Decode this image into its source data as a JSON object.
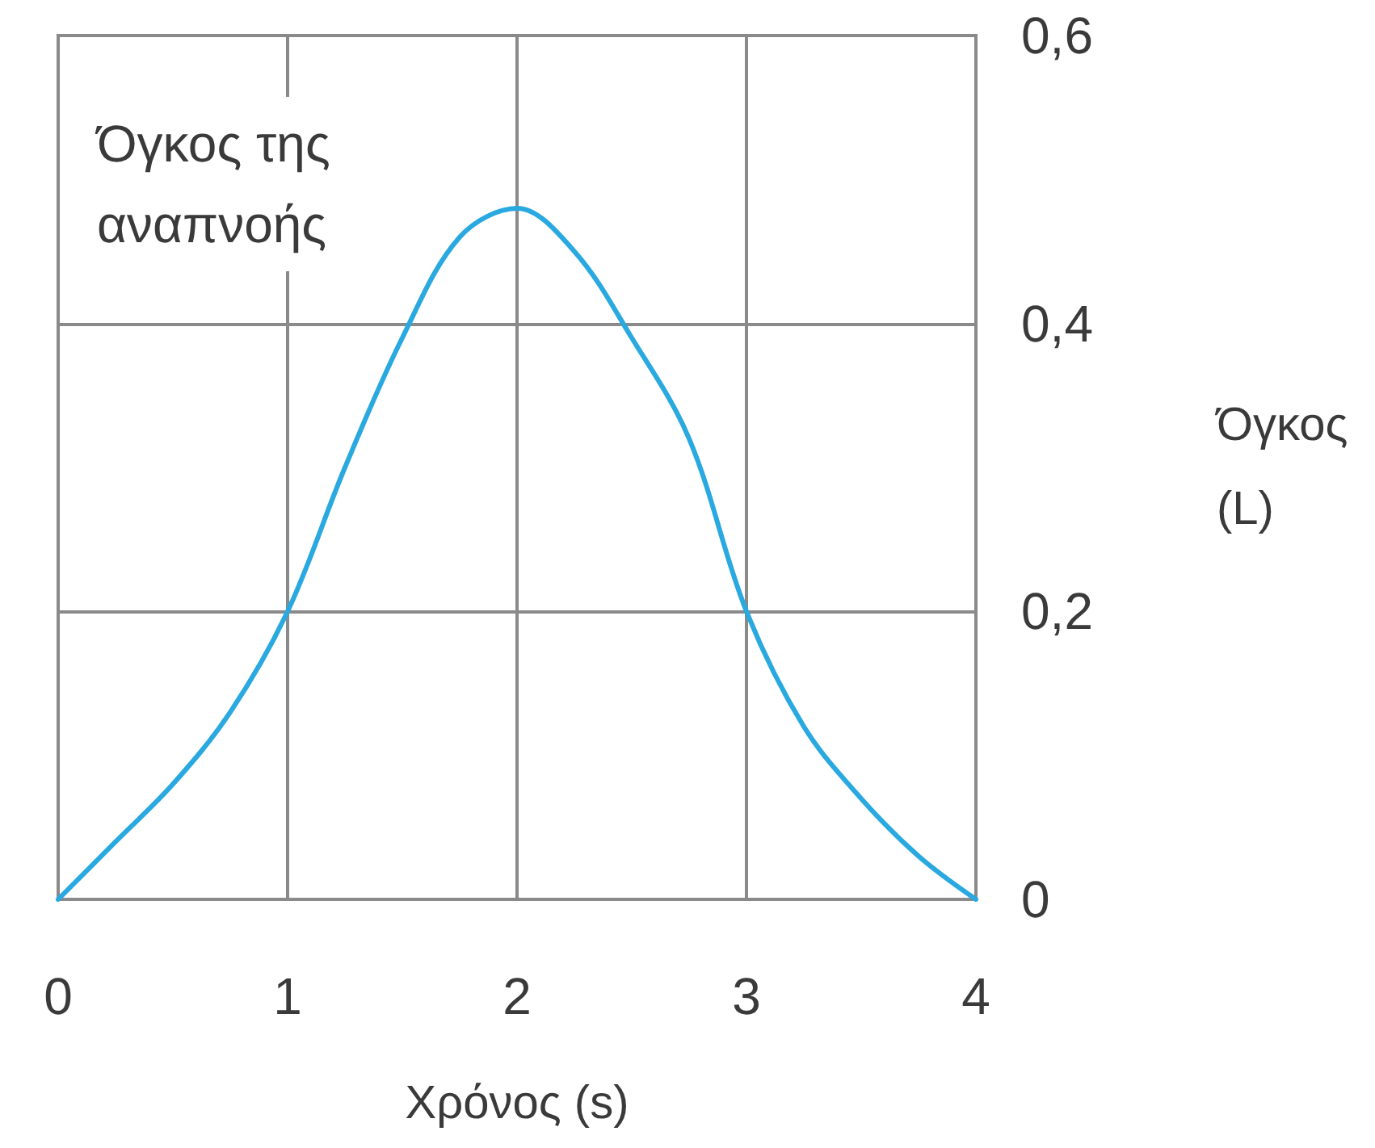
{
  "chart_data": {
    "type": "line",
    "xlabel": "Χρόνος (s)",
    "ylabel": "Όγκος (L)",
    "annotations": [
      "Όγκος της αναπνοής"
    ],
    "x": [
      0,
      0.25,
      0.5,
      0.75,
      1,
      1.25,
      1.5,
      1.75,
      2,
      2.25,
      2.5,
      2.75,
      3,
      3.25,
      3.5,
      3.75,
      4
    ],
    "series": [
      {
        "color": "#29a9e0",
        "values": [
          0,
          0.04,
          0.08,
          0.13,
          0.2,
          0.3,
          0.39,
          0.46,
          0.48,
          0.45,
          0.39,
          0.32,
          0.2,
          0.12,
          0.07,
          0.03,
          0
        ]
      }
    ],
    "xlim": [
      0,
      4
    ],
    "ylim": [
      0,
      0.6
    ],
    "xticks": [
      0,
      1,
      2,
      3,
      4
    ],
    "yticks": [
      0,
      {
        "value": 0.2,
        "label": "0,2"
      },
      {
        "value": 0.4,
        "label": "0,4"
      },
      {
        "value": 0.6,
        "label": "0,6"
      }
    ],
    "grid": true,
    "marker": "none",
    "line_style": "solid"
  }
}
